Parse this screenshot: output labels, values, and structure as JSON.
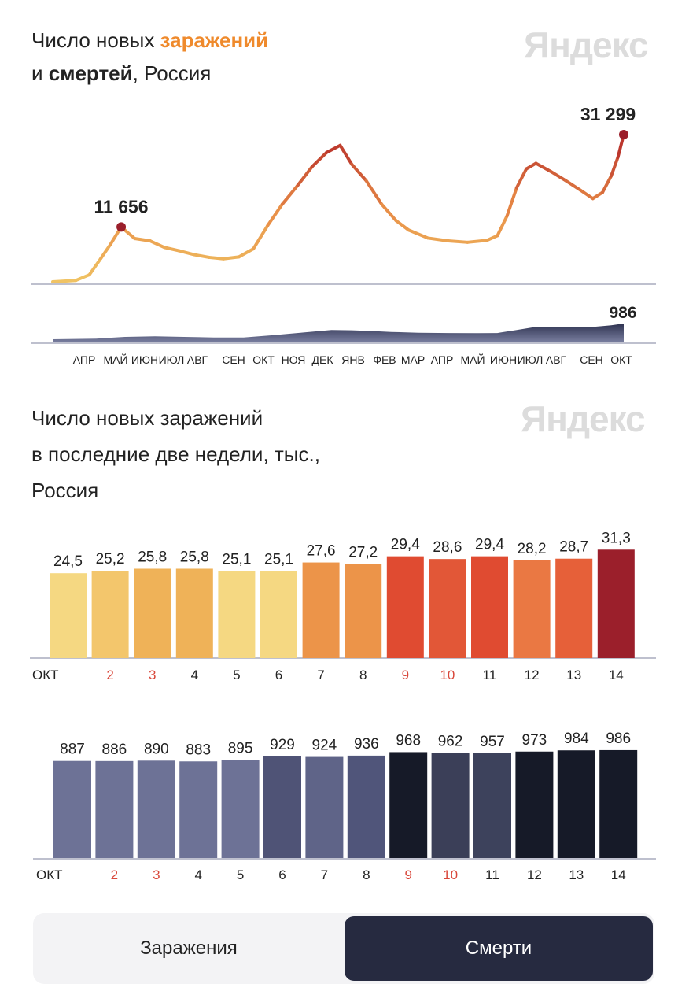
{
  "watermark": "Яндекс",
  "top_title": {
    "part1": "Число новых ",
    "part2": "заражений",
    "part3": "и ",
    "part4": "смертей",
    "part5": ", Россия"
  },
  "bars_title": {
    "line1": "Число новых заражений",
    "line2": "в последние две недели, тыс.,",
    "line3": "Россия"
  },
  "toggle": {
    "options": [
      "Заражения",
      "Смерти"
    ],
    "selected": "Смерти"
  },
  "colors": {
    "accent": "#ef8a2c",
    "selected_toggle": "#262a40",
    "weekend_label": "#d9473a",
    "deaths_area": "#3d4263"
  },
  "chart_data": [
    {
      "type": "line",
      "title": "Число новых заражений и смертей, Россия",
      "series_label": "заражения",
      "annotations": [
        {
          "x": "2020-05-11",
          "label": "11 656"
        },
        {
          "x": "2021-10-14",
          "label": "31 299"
        }
      ],
      "x_tick_labels": [
        "АПР",
        "МАЙ",
        "ИЮН",
        "ИЮЛ",
        "АВГ",
        "СЕН",
        "ОКТ",
        "НОЯ",
        "ДЕК",
        "ЯНВ",
        "ФЕВ",
        "МАР",
        "АПР",
        "МАЙ",
        "ИЮН",
        "ИЮЛ",
        "АВГ",
        "СЕН",
        "ОКТ"
      ],
      "points": [
        [
          "2020-03-01",
          0
        ],
        [
          "2020-03-25",
          300
        ],
        [
          "2020-04-08",
          1500
        ],
        [
          "2020-04-20",
          5000
        ],
        [
          "2020-04-30",
          8000
        ],
        [
          "2020-05-11",
          11656
        ],
        [
          "2020-05-25",
          9200
        ],
        [
          "2020-06-10",
          8700
        ],
        [
          "2020-06-25",
          7300
        ],
        [
          "2020-07-10",
          6600
        ],
        [
          "2020-07-25",
          5800
        ],
        [
          "2020-08-10",
          5200
        ],
        [
          "2020-08-25",
          4900
        ],
        [
          "2020-09-10",
          5300
        ],
        [
          "2020-09-25",
          7000
        ],
        [
          "2020-10-10",
          12000
        ],
        [
          "2020-10-25",
          16500
        ],
        [
          "2020-11-10",
          20500
        ],
        [
          "2020-11-25",
          24500
        ],
        [
          "2020-12-10",
          27500
        ],
        [
          "2020-12-24",
          29000
        ],
        [
          "2021-01-05",
          25000
        ],
        [
          "2021-01-20",
          21500
        ],
        [
          "2021-02-05",
          16500
        ],
        [
          "2021-02-20",
          13000
        ],
        [
          "2021-03-05",
          11000
        ],
        [
          "2021-03-25",
          9300
        ],
        [
          "2021-04-15",
          8700
        ],
        [
          "2021-05-05",
          8400
        ],
        [
          "2021-05-25",
          8800
        ],
        [
          "2021-06-05",
          9800
        ],
        [
          "2021-06-15",
          14000
        ],
        [
          "2021-06-25",
          20000
        ],
        [
          "2021-07-05",
          24000
        ],
        [
          "2021-07-15",
          25200
        ],
        [
          "2021-07-30",
          23500
        ],
        [
          "2021-08-15",
          21500
        ],
        [
          "2021-08-30",
          19500
        ],
        [
          "2021-09-12",
          17700
        ],
        [
          "2021-09-22",
          19000
        ],
        [
          "2021-10-01",
          22500
        ],
        [
          "2021-10-08",
          26500
        ],
        [
          "2021-10-14",
          31299
        ]
      ]
    },
    {
      "type": "area",
      "series_label": "смерти",
      "annotations": [
        {
          "x": "2021-10-14",
          "label": "986"
        }
      ],
      "points": [
        [
          "2020-03-01",
          0
        ],
        [
          "2020-04-15",
          40
        ],
        [
          "2020-05-15",
          150
        ],
        [
          "2020-06-15",
          180
        ],
        [
          "2020-07-15",
          150
        ],
        [
          "2020-08-15",
          115
        ],
        [
          "2020-09-15",
          110
        ],
        [
          "2020-10-15",
          250
        ],
        [
          "2020-11-15",
          420
        ],
        [
          "2020-12-15",
          580
        ],
        [
          "2021-01-05",
          560
        ],
        [
          "2021-01-25",
          520
        ],
        [
          "2021-02-15",
          460
        ],
        [
          "2021-03-15",
          410
        ],
        [
          "2021-04-15",
          390
        ],
        [
          "2021-05-15",
          380
        ],
        [
          "2021-06-05",
          390
        ],
        [
          "2021-06-25",
          580
        ],
        [
          "2021-07-15",
          780
        ],
        [
          "2021-08-15",
          790
        ],
        [
          "2021-09-15",
          790
        ],
        [
          "2021-10-01",
          880
        ],
        [
          "2021-10-14",
          986
        ]
      ]
    },
    {
      "type": "bar",
      "title": "Число новых заражений в последние две недели, тыс., Россия",
      "categories": [
        "ОКТ",
        "2",
        "3",
        "4",
        "5",
        "6",
        "7",
        "8",
        "9",
        "10",
        "11",
        "12",
        "13",
        "14"
      ],
      "values": [
        24.5,
        25.2,
        25.8,
        25.8,
        25.1,
        25.1,
        27.6,
        27.2,
        29.4,
        28.6,
        29.4,
        28.2,
        28.7,
        31.3
      ],
      "value_labels": [
        "24,5",
        "25,2",
        "25,8",
        "25,8",
        "25,1",
        "25,1",
        "27,6",
        "27,2",
        "29,4",
        "28,6",
        "29,4",
        "28,2",
        "28,7",
        "31,3"
      ],
      "bar_colors": [
        "#f5d882",
        "#f3c66c",
        "#efb258",
        "#efb258",
        "#f5d882",
        "#f5d882",
        "#ec9449",
        "#ec9449",
        "#e04b31",
        "#e25737",
        "#e04b31",
        "#ea7843",
        "#e66039",
        "#9b1f2b"
      ],
      "weekend": [
        false,
        true,
        true,
        false,
        false,
        false,
        false,
        false,
        true,
        true,
        false,
        false,
        false,
        false
      ]
    },
    {
      "type": "bar",
      "categories": [
        "ОКТ",
        "2",
        "3",
        "4",
        "5",
        "6",
        "7",
        "8",
        "9",
        "10",
        "11",
        "12",
        "13",
        "14"
      ],
      "values": [
        887,
        886,
        890,
        883,
        895,
        929,
        924,
        936,
        968,
        962,
        957,
        973,
        984,
        986
      ],
      "bar_colors": [
        "#6d7296",
        "#6d7296",
        "#6d7296",
        "#6d7296",
        "#6d7296",
        "#4f5376",
        "#5f6488",
        "#50557a",
        "#161a28",
        "#3b3f58",
        "#3d425c",
        "#161a28",
        "#161a28",
        "#161a28"
      ],
      "weekend": [
        false,
        true,
        true,
        false,
        false,
        false,
        false,
        false,
        true,
        true,
        false,
        false,
        false,
        false
      ]
    }
  ]
}
